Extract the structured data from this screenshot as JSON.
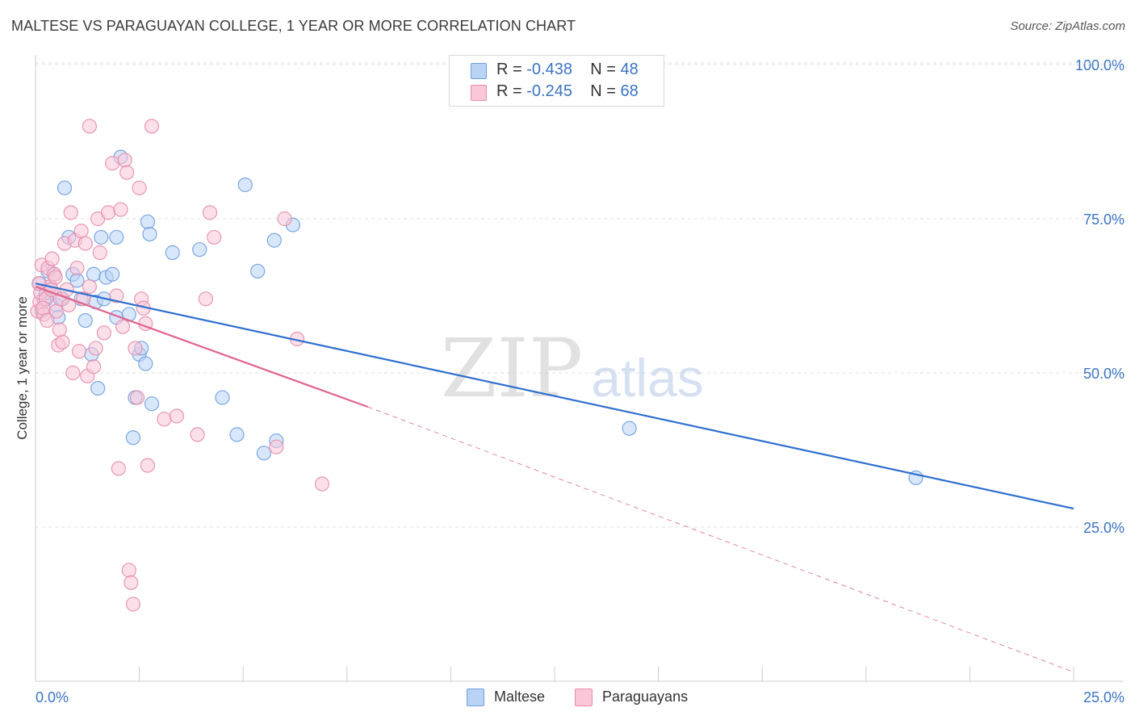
{
  "title": "MALTESE VS PARAGUAYAN COLLEGE, 1 YEAR OR MORE CORRELATION CHART",
  "source": "Source: ZipAtlas.com",
  "watermark": {
    "zip": "ZIP",
    "atlas": "atlas"
  },
  "legend": {
    "r_label": "R =",
    "n_label": "N =",
    "rows": [
      {
        "r": "-0.438",
        "n": "48"
      },
      {
        "r": "-0.245",
        "n": "68"
      }
    ]
  },
  "colors": {
    "maltese_fill": "#b9d3f5",
    "maltese_stroke": "#6e9fe0",
    "maltese_line": "#2e6fcf",
    "paraguayan_fill": "#f9c7d7",
    "paraguayan_stroke": "#e88cab",
    "paraguayan_line": "#e0648e",
    "tick_label": "#3a73c4",
    "grid": "#e2e2e2"
  },
  "chart_data": {
    "type": "scatter",
    "title": "MALTESE VS PARAGUAYAN COLLEGE, 1 YEAR OR MORE CORRELATION CHART",
    "xlabel": "",
    "ylabel": "College, 1 year or more",
    "xlim": [
      0,
      25
    ],
    "ylim": [
      0,
      101
    ],
    "x_tick_labels": [
      "0.0%",
      "25.0%"
    ],
    "y_ticks": [
      25,
      50,
      75,
      100
    ],
    "y_tick_labels": [
      "25.0%",
      "50.0%",
      "75.0%",
      "100.0%"
    ],
    "grid": true,
    "legend_position": "top-center",
    "series": [
      {
        "name": "Maltese",
        "r": -0.438,
        "n": 48,
        "trend": {
          "x": [
            0.0,
            25.0
          ],
          "y": [
            64.5,
            28.0
          ],
          "style": "solid"
        },
        "points": [
          {
            "x": 0.1,
            "y": 64.5
          },
          {
            "x": 0.15,
            "y": 60.0
          },
          {
            "x": 0.2,
            "y": 62.0
          },
          {
            "x": 0.3,
            "y": 66.5
          },
          {
            "x": 0.35,
            "y": 64.0
          },
          {
            "x": 0.45,
            "y": 66.0
          },
          {
            "x": 0.5,
            "y": 61.0
          },
          {
            "x": 0.55,
            "y": 59.0
          },
          {
            "x": 0.65,
            "y": 62.0
          },
          {
            "x": 0.7,
            "y": 80.0
          },
          {
            "x": 0.8,
            "y": 72.0
          },
          {
            "x": 0.9,
            "y": 66.0
          },
          {
            "x": 1.0,
            "y": 65.0
          },
          {
            "x": 1.1,
            "y": 62.0
          },
          {
            "x": 1.2,
            "y": 58.5
          },
          {
            "x": 1.35,
            "y": 53.0
          },
          {
            "x": 1.4,
            "y": 66.0
          },
          {
            "x": 1.45,
            "y": 61.5
          },
          {
            "x": 1.5,
            "y": 47.5
          },
          {
            "x": 1.58,
            "y": 72.0
          },
          {
            "x": 1.65,
            "y": 62.0
          },
          {
            "x": 1.7,
            "y": 65.5
          },
          {
            "x": 1.85,
            "y": 66.0
          },
          {
            "x": 1.95,
            "y": 72.0
          },
          {
            "x": 1.95,
            "y": 59.0
          },
          {
            "x": 2.05,
            "y": 85.0
          },
          {
            "x": 2.25,
            "y": 59.5
          },
          {
            "x": 2.35,
            "y": 39.5
          },
          {
            "x": 2.4,
            "y": 46.0
          },
          {
            "x": 2.5,
            "y": 53.0
          },
          {
            "x": 2.55,
            "y": 54.0
          },
          {
            "x": 2.65,
            "y": 51.5
          },
          {
            "x": 2.7,
            "y": 74.5
          },
          {
            "x": 2.75,
            "y": 72.5
          },
          {
            "x": 2.8,
            "y": 45.0
          },
          {
            "x": 3.3,
            "y": 69.5
          },
          {
            "x": 3.95,
            "y": 70.0
          },
          {
            "x": 4.5,
            "y": 46.0
          },
          {
            "x": 4.85,
            "y": 40.0
          },
          {
            "x": 5.05,
            "y": 80.5
          },
          {
            "x": 5.35,
            "y": 66.5
          },
          {
            "x": 5.5,
            "y": 37.0
          },
          {
            "x": 5.75,
            "y": 71.5
          },
          {
            "x": 5.8,
            "y": 39.0
          },
          {
            "x": 6.2,
            "y": 74.0
          },
          {
            "x": 14.3,
            "y": 41.0
          },
          {
            "x": 21.2,
            "y": 33.0
          },
          {
            "x": 0.25,
            "y": 63.0
          }
        ]
      },
      {
        "name": "Paraguayans",
        "r": -0.245,
        "n": 68,
        "trend": {
          "x": [
            0.0,
            8.0
          ],
          "y": [
            64.0,
            44.5
          ],
          "style": "solid"
        },
        "trend_extension": {
          "x": [
            8.0,
            25.0
          ],
          "y": [
            44.5,
            1.5
          ],
          "style": "dashed"
        },
        "points": [
          {
            "x": 0.05,
            "y": 60.0
          },
          {
            "x": 0.1,
            "y": 61.5
          },
          {
            "x": 0.12,
            "y": 63.0
          },
          {
            "x": 0.15,
            "y": 67.5
          },
          {
            "x": 0.2,
            "y": 59.5
          },
          {
            "x": 0.25,
            "y": 62.0
          },
          {
            "x": 0.3,
            "y": 67.0
          },
          {
            "x": 0.35,
            "y": 64.0
          },
          {
            "x": 0.4,
            "y": 68.5
          },
          {
            "x": 0.45,
            "y": 66.0
          },
          {
            "x": 0.5,
            "y": 60.0
          },
          {
            "x": 0.55,
            "y": 54.5
          },
          {
            "x": 0.6,
            "y": 62.0
          },
          {
            "x": 0.65,
            "y": 55.0
          },
          {
            "x": 0.7,
            "y": 71.0
          },
          {
            "x": 0.75,
            "y": 63.5
          },
          {
            "x": 0.8,
            "y": 61.0
          },
          {
            "x": 0.85,
            "y": 76.0
          },
          {
            "x": 0.9,
            "y": 50.0
          },
          {
            "x": 0.95,
            "y": 71.5
          },
          {
            "x": 1.0,
            "y": 67.0
          },
          {
            "x": 1.05,
            "y": 53.5
          },
          {
            "x": 1.1,
            "y": 73.0
          },
          {
            "x": 1.15,
            "y": 62.0
          },
          {
            "x": 1.2,
            "y": 71.0
          },
          {
            "x": 1.25,
            "y": 49.5
          },
          {
            "x": 1.3,
            "y": 64.0
          },
          {
            "x": 1.3,
            "y": 90.0
          },
          {
            "x": 1.4,
            "y": 51.0
          },
          {
            "x": 1.45,
            "y": 54.0
          },
          {
            "x": 1.5,
            "y": 75.0
          },
          {
            "x": 1.55,
            "y": 69.5
          },
          {
            "x": 1.65,
            "y": 56.5
          },
          {
            "x": 1.75,
            "y": 76.0
          },
          {
            "x": 1.85,
            "y": 84.0
          },
          {
            "x": 1.95,
            "y": 62.5
          },
          {
            "x": 2.0,
            "y": 34.5
          },
          {
            "x": 2.05,
            "y": 76.5
          },
          {
            "x": 2.1,
            "y": 57.5
          },
          {
            "x": 2.15,
            "y": 84.5
          },
          {
            "x": 2.2,
            "y": 82.5
          },
          {
            "x": 2.25,
            "y": 18.0
          },
          {
            "x": 2.3,
            "y": 16.0
          },
          {
            "x": 2.35,
            "y": 12.5
          },
          {
            "x": 2.4,
            "y": 54.0
          },
          {
            "x": 2.45,
            "y": 46.0
          },
          {
            "x": 2.5,
            "y": 80.0
          },
          {
            "x": 2.55,
            "y": 62.0
          },
          {
            "x": 2.6,
            "y": 60.5
          },
          {
            "x": 2.65,
            "y": 58.0
          },
          {
            "x": 2.7,
            "y": 35.0
          },
          {
            "x": 2.8,
            "y": 90.0
          },
          {
            "x": 3.1,
            "y": 42.5
          },
          {
            "x": 3.4,
            "y": 43.0
          },
          {
            "x": 3.9,
            "y": 40.0
          },
          {
            "x": 4.1,
            "y": 62.0
          },
          {
            "x": 4.2,
            "y": 76.0
          },
          {
            "x": 4.3,
            "y": 72.0
          },
          {
            "x": 5.8,
            "y": 38.0
          },
          {
            "x": 6.0,
            "y": 75.0
          },
          {
            "x": 6.3,
            "y": 55.5
          },
          {
            "x": 6.9,
            "y": 32.0
          },
          {
            "x": 0.18,
            "y": 60.5
          },
          {
            "x": 0.28,
            "y": 58.5
          },
          {
            "x": 0.38,
            "y": 63.5
          },
          {
            "x": 0.48,
            "y": 65.5
          },
          {
            "x": 0.08,
            "y": 64.5
          },
          {
            "x": 0.58,
            "y": 57.0
          }
        ]
      }
    ]
  }
}
